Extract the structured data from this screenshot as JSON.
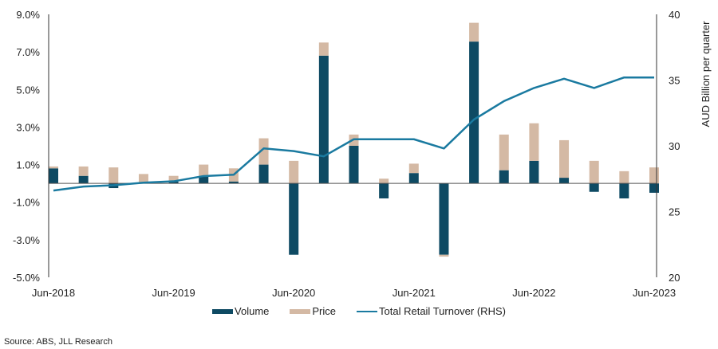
{
  "chart_data": {
    "type": "bar",
    "stacked": true,
    "categories": [
      "Jun-2018",
      "Sep-2018",
      "Dec-2018",
      "Mar-2019",
      "Jun-2019",
      "Sep-2019",
      "Dec-2019",
      "Mar-2020",
      "Jun-2020",
      "Sep-2020",
      "Dec-2020",
      "Mar-2021",
      "Jun-2021",
      "Sep-2021",
      "Dec-2021",
      "Mar-2022",
      "Jun-2022",
      "Sep-2022",
      "Dec-2022",
      "Mar-2023",
      "Jun-2023"
    ],
    "x_tick_labels": [
      "Jun-2018",
      "Jun-2019",
      "Jun-2020",
      "Jun-2021",
      "Jun-2022",
      "Jun-2023"
    ],
    "series": [
      {
        "name": "Volume",
        "type": "bar",
        "axis": "left",
        "color": "#0e4a63",
        "values": [
          0.8,
          0.4,
          -0.25,
          0.05,
          0.1,
          0.4,
          0.1,
          1.0,
          -3.8,
          6.8,
          2.0,
          -0.8,
          0.55,
          -3.8,
          7.55,
          0.7,
          1.2,
          0.3,
          -0.45,
          -0.8,
          -0.5
        ]
      },
      {
        "name": "Price",
        "type": "bar",
        "axis": "left",
        "color": "#d4b9a4",
        "values": [
          0.1,
          0.5,
          0.85,
          0.45,
          0.3,
          0.6,
          0.7,
          1.4,
          1.2,
          0.7,
          0.6,
          0.25,
          0.5,
          -0.1,
          1.0,
          1.9,
          2.0,
          2.0,
          1.2,
          0.65,
          0.85
        ]
      },
      {
        "name": "Total Retail Turnover (RHS)",
        "type": "line",
        "axis": "right",
        "color": "#1a7aa0",
        "values": [
          26.6,
          26.9,
          27.0,
          27.2,
          27.3,
          27.7,
          27.8,
          29.8,
          29.6,
          29.2,
          30.5,
          30.5,
          30.5,
          29.8,
          32.0,
          33.4,
          34.4,
          35.1,
          34.4,
          35.2,
          35.2
        ]
      }
    ],
    "title": "",
    "xlabel": "",
    "ylabel": "",
    "ylabel_right": "AUD Billion per quarter",
    "ylim": [
      -5.0,
      9.0
    ],
    "ylim_right": [
      20,
      40
    ],
    "y_ticks": [
      "9.0%",
      "7.0%",
      "5.0%",
      "3.0%",
      "1.0%",
      "-1.0%",
      "-3.0%",
      "-5.0%"
    ],
    "y_tick_values": [
      9,
      7,
      5,
      3,
      1,
      -1,
      -3,
      -5
    ],
    "y_right_ticks": [
      "40",
      "35",
      "30",
      "25",
      "20"
    ],
    "y_right_tick_values": [
      40,
      35,
      30,
      25,
      20
    ],
    "grid": false,
    "legend_position": "bottom"
  },
  "legend": {
    "volume": "Volume",
    "price": "Price",
    "turnover": "Total Retail Turnover (RHS)"
  },
  "source": "Source: ABS, JLL Research"
}
